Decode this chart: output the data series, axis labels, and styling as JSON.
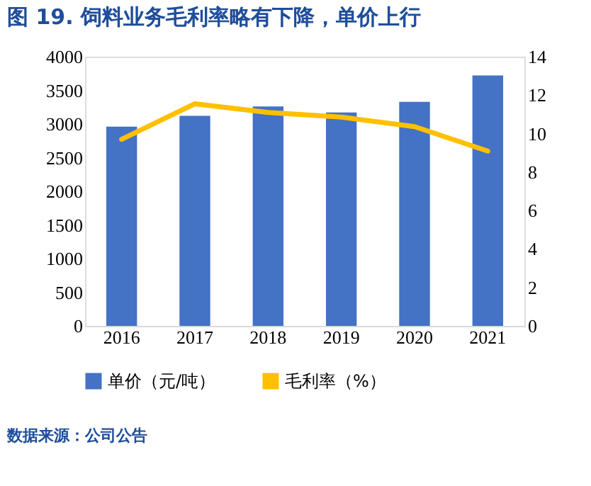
{
  "chart_data": {
    "type": "bar",
    "title": "图 19. 饲料业务毛利率略有下降，单价上行",
    "categories": [
      "2016",
      "2017",
      "2018",
      "2019",
      "2020",
      "2021"
    ],
    "series": [
      {
        "name": "单价（元/吨）",
        "color": "#4472c4",
        "values": [
          2960,
          3120,
          3260,
          3170,
          3330,
          3720
        ]
      },
      {
        "name": "毛利率（%）",
        "type": "line",
        "axis": "y2",
        "color": "#ffc000",
        "values": [
          9.7,
          11.55,
          11.1,
          10.86,
          10.36,
          9.09
        ]
      }
    ],
    "ylim": [
      0,
      4000
    ],
    "yticks": [
      0,
      500,
      1000,
      1500,
      2000,
      2500,
      3000,
      3500,
      4000
    ],
    "y2lim": [
      0,
      14
    ],
    "y2ticks": [
      0,
      2,
      4,
      6,
      8,
      10,
      12,
      14
    ],
    "grid": false,
    "legend": "bottom",
    "marker": "none",
    "line_style": "solid",
    "annotations": [
      "数据来源：公司公告"
    ]
  }
}
